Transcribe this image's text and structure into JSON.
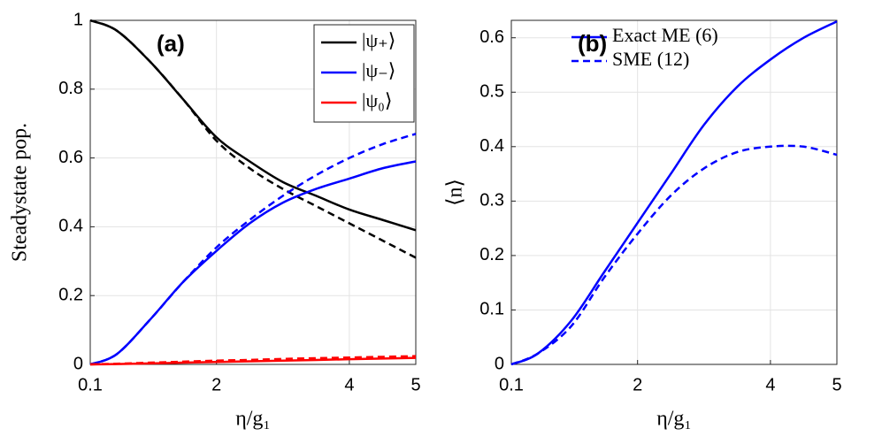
{
  "chart_data": [
    {
      "type": "line",
      "annotation": "(a)",
      "ylabel": "Steadystate pop.",
      "xlabel": "η/g₁",
      "x": [
        0.1,
        0.5,
        1,
        1.5,
        2,
        2.5,
        3,
        3.5,
        4,
        4.5,
        5
      ],
      "xlim": [
        0.1,
        5
      ],
      "xticks": [
        0.1,
        2,
        4,
        5
      ],
      "ylim": [
        0,
        1
      ],
      "yticks": [
        0,
        0.2,
        0.4,
        0.6,
        0.8,
        1
      ],
      "grid": true,
      "legend_loc": "upper right",
      "legend_box": true,
      "series": [
        {
          "name": "|ψ₊⟩",
          "color": "#000000",
          "dashed": false,
          "values": [
            1.0,
            0.97,
            0.88,
            0.77,
            0.66,
            0.59,
            0.53,
            0.49,
            0.45,
            0.42,
            0.39
          ]
        },
        {
          "color": "#000000",
          "dashed": true,
          "values": [
            1.0,
            0.97,
            0.88,
            0.77,
            0.65,
            0.57,
            0.51,
            0.46,
            0.41,
            0.36,
            0.31
          ]
        },
        {
          "name": "|ψ₋⟩",
          "color": "#0000ff",
          "dashed": false,
          "values": [
            0,
            0.03,
            0.13,
            0.24,
            0.33,
            0.41,
            0.47,
            0.51,
            0.54,
            0.57,
            0.59
          ]
        },
        {
          "color": "#0000ff",
          "dashed": true,
          "values": [
            0,
            0.03,
            0.13,
            0.24,
            0.34,
            0.42,
            0.49,
            0.55,
            0.6,
            0.64,
            0.67
          ]
        },
        {
          "name": "|ψ₀⟩",
          "color": "#ff0000",
          "dashed": false,
          "values": [
            0,
            0.001,
            0.003,
            0.005,
            0.007,
            0.009,
            0.011,
            0.013,
            0.015,
            0.017,
            0.019
          ]
        },
        {
          "color": "#ff0000",
          "dashed": true,
          "values": [
            0,
            0.002,
            0.005,
            0.008,
            0.011,
            0.013,
            0.016,
            0.018,
            0.02,
            0.022,
            0.024
          ]
        }
      ]
    },
    {
      "type": "line",
      "annotation": "(b)",
      "ylabel": "⟨n⟩",
      "xlabel": "η/g₁",
      "x": [
        0.1,
        0.5,
        1,
        1.5,
        2,
        2.5,
        3,
        3.5,
        4,
        4.5,
        5
      ],
      "xlim": [
        0.1,
        5
      ],
      "xticks": [
        0.1,
        2,
        4,
        5
      ],
      "ylim": [
        0,
        0.632
      ],
      "yticks": [
        0,
        0.1,
        0.2,
        0.3,
        0.4,
        0.5,
        0.6
      ],
      "grid": true,
      "legend_loc": "upper left",
      "legend_box": false,
      "series": [
        {
          "name": "Exact ME (6)",
          "color": "#0000ff",
          "dashed": false,
          "values": [
            0,
            0.02,
            0.08,
            0.17,
            0.26,
            0.35,
            0.44,
            0.51,
            0.56,
            0.6,
            0.63
          ]
        },
        {
          "name": "SME (12)",
          "color": "#0000ff",
          "dashed": true,
          "values": [
            0,
            0.02,
            0.07,
            0.16,
            0.24,
            0.31,
            0.36,
            0.39,
            0.4,
            0.4,
            0.385
          ]
        }
      ]
    }
  ]
}
